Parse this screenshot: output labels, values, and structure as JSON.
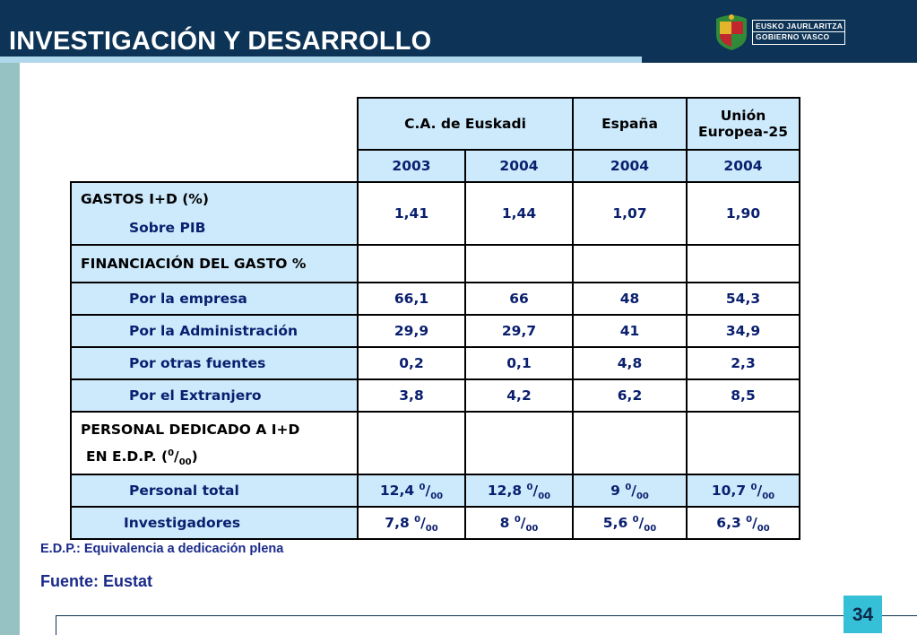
{
  "header": {
    "title": "INVESTIGACIÓN Y DESARROLLO",
    "logo_line1": "EUSKO JAURLARITZA",
    "logo_line2": "GOBIERNO VASCO"
  },
  "table": {
    "col_headers": [
      "C.A. de Euskadi",
      "España",
      "Unión Europea-25"
    ],
    "years": [
      "2003",
      "2004",
      "2004",
      "2004"
    ],
    "gastos": {
      "label": "GASTOS I+D (%)",
      "sublabel": "Sobre PIB",
      "values": [
        "1,41",
        "1,44",
        "1,07",
        "1,90"
      ]
    },
    "financiacion": {
      "label": "FINANCIACIÓN DEL GASTO %",
      "rows": [
        {
          "label": "Por la empresa",
          "values": [
            "66,1",
            "66",
            "48",
            "54,3"
          ]
        },
        {
          "label": "Por la Administración",
          "values": [
            "29,9",
            "29,7",
            "41",
            "34,9"
          ]
        },
        {
          "label": "Por otras fuentes",
          "values": [
            "0,2",
            "0,1",
            "4,8",
            "2,3"
          ]
        },
        {
          "label": "Por el Extranjero",
          "values": [
            "3,8",
            "4,2",
            "6,2",
            "8,5"
          ]
        }
      ]
    },
    "personal": {
      "label1": "PERSONAL DEDICADO A I+D",
      "label2_pre": "EN E.D.P. (",
      "label2_sup": "0",
      "label2_slash": "/",
      "label2_sub": "00",
      "label2_post": ")",
      "unit_sup": "0",
      "unit_slash": "/",
      "unit_sub": "00",
      "rows": [
        {
          "label": "Personal total",
          "values": [
            "12,4",
            "12,8",
            "9",
            "10,7"
          ]
        },
        {
          "label": "Investigadores",
          "values": [
            "7,8",
            "8",
            "5,6",
            "6,3"
          ]
        }
      ]
    }
  },
  "notes": {
    "edp": "E.D.P.: Equivalencia a dedicación plena",
    "fuente": "Fuente: Eustat"
  },
  "page_number": "34",
  "colors": {
    "header_bg": "#0d3356",
    "title_underline": "#b0d8ec",
    "left_bar": "#97c2c4",
    "table_light_blue": "#cdeafc",
    "text_blue": "#0a1f6e",
    "page_box": "#35c0d8"
  }
}
